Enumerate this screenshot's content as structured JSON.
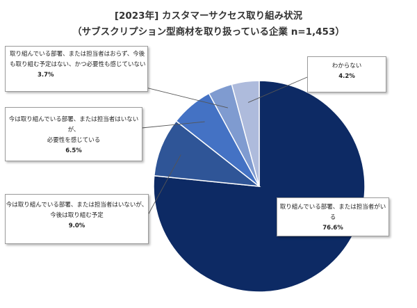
{
  "title": {
    "line1": "[2023年] カスタマーサクセス取り組み状況",
    "line2": "（サブスクリプション型商材を取り扱っている企業 n=1,453）"
  },
  "chart_data": {
    "type": "pie",
    "start_angle_deg": 0,
    "direction": "clockwise",
    "slices": [
      {
        "label": "取り組んでいる部署、または担当者がいる",
        "value": 76.6,
        "pct_text": "76.6%",
        "color": "#0d2a64"
      },
      {
        "label": "今は取り組んでいる部署、または担当者はいないが、今後は取り組む予定",
        "value": 9.0,
        "pct_text": "9.0%",
        "color": "#2f5597"
      },
      {
        "label": "今は取り組んでいる部署、または担当者はいないが、必要性を感じている",
        "value": 6.5,
        "pct_text": "6.5%",
        "color": "#4472c4"
      },
      {
        "label": "取り組んでいる部署、または担当者はおらず、今後も取り組む予定はない、かつ必要性も感じていない",
        "value": 3.7,
        "pct_text": "3.7%",
        "color": "#7f9bd0"
      },
      {
        "label": "わからない",
        "value": 4.2,
        "pct_text": "4.2%",
        "color": "#aebbdc"
      }
    ]
  },
  "callouts": {
    "s0": {
      "lines": [
        "取り組んでいる部署、または担当者がいる"
      ],
      "pct": "76.6%"
    },
    "s1": {
      "lines": [
        "今は取り組んでいる部署、または担当者はいないが、",
        "今後は取り組む予定"
      ],
      "pct": "9.0%"
    },
    "s2": {
      "lines": [
        "今は取り組んでいる部署、または担当者はいないが、",
        "必要性を感じている"
      ],
      "pct": "6.5%"
    },
    "s3": {
      "lines": [
        "取り組んでいる部署、または担当者はおらず、今後",
        "も取り組む予定はない、かつ必要性も感じていない"
      ],
      "pct": "3.7%"
    },
    "s4": {
      "lines": [
        "わからない"
      ],
      "pct": "4.2%"
    }
  }
}
